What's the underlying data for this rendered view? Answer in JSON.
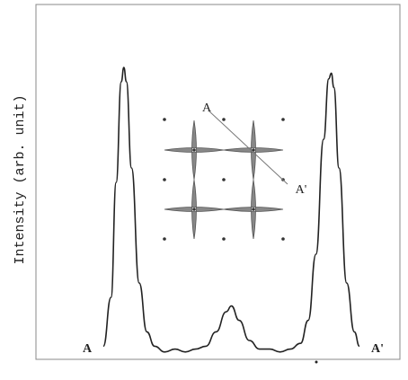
{
  "chart_data": {
    "type": "line",
    "y_label": "Intensity (arb. unit)",
    "start_label": "A",
    "end_label": "A'",
    "inset_labels": [
      "A",
      "A'"
    ],
    "x": [
      0,
      3,
      5,
      7,
      8,
      9,
      11,
      14,
      17,
      20,
      24,
      28,
      32,
      36,
      40,
      44,
      48,
      50,
      53,
      57,
      61,
      65,
      69,
      73,
      77,
      80,
      83,
      86,
      88,
      89,
      90,
      92,
      95,
      98,
      100
    ],
    "values": [
      3,
      20,
      60,
      95,
      100,
      95,
      65,
      25,
      8,
      3,
      1,
      2,
      1,
      2,
      3,
      8,
      15,
      17,
      12,
      5,
      2,
      2,
      1,
      2,
      4,
      12,
      35,
      75,
      96,
      98,
      93,
      65,
      25,
      8,
      3
    ],
    "color": "#222222",
    "xlim": [
      0,
      100
    ],
    "ylim": [
      0,
      100
    ]
  }
}
